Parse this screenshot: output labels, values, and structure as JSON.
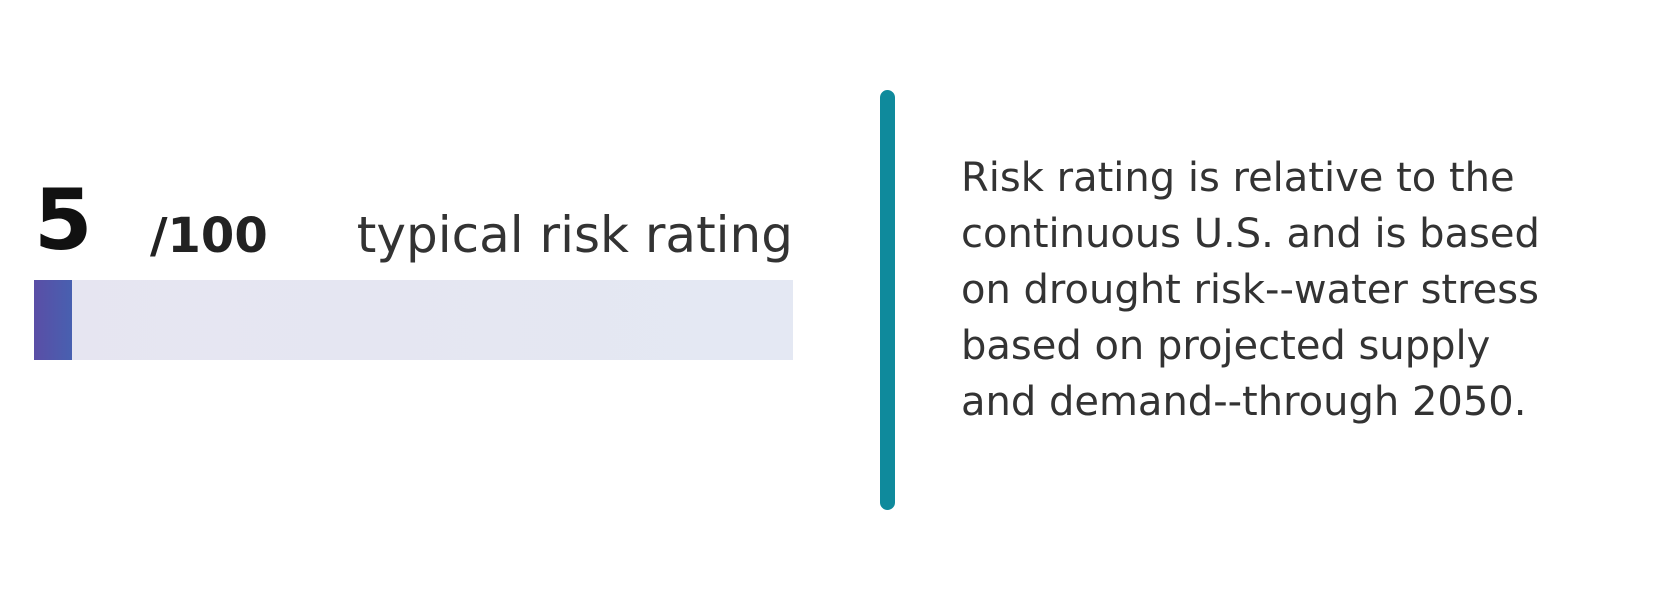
{
  "rating": {
    "value": 5,
    "max": 100,
    "max_label": "/100",
    "label": "typical risk rating"
  },
  "description": {
    "lines": [
      "Risk rating is relative to the",
      "continuous U.S. and is based",
      "on drought risk--water stress",
      "based on projected supply",
      "and demand--through 2050."
    ]
  }
}
